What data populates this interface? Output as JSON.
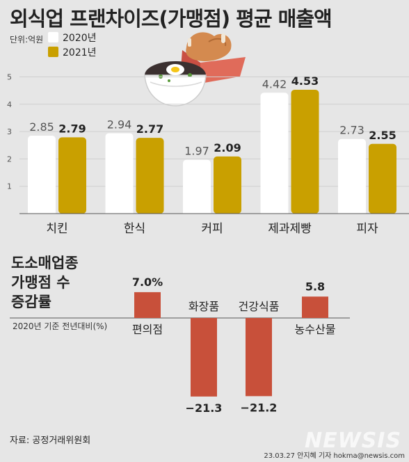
{
  "title": "외식업 프랜차이즈(가맹점) 평균 매출액",
  "unit": "단위:억원",
  "legend": [
    {
      "label": "2020년",
      "color": "#ffffff"
    },
    {
      "label": "2021년",
      "color": "#c9a000"
    }
  ],
  "chart_data": [
    {
      "type": "bar",
      "title": "외식업 프랜차이즈(가맹점) 평균 매출액",
      "unit": "단위:억원",
      "categories": [
        "치킨",
        "한식",
        "커피",
        "제과제빵",
        "피자"
      ],
      "series": [
        {
          "name": "2020년",
          "values": [
            2.85,
            2.94,
            1.97,
            4.42,
            2.73
          ],
          "color": "#ffffff"
        },
        {
          "name": "2021년",
          "values": [
            2.79,
            2.77,
            2.09,
            4.53,
            2.55
          ],
          "color": "#c9a000"
        }
      ],
      "value_labels": [
        [
          "2.85",
          "2.94",
          "1.97",
          "4.42",
          "2.73"
        ],
        [
          "2.79",
          "2.77",
          "2.09",
          "4.53",
          "2.55"
        ]
      ],
      "yticks": [
        "1",
        "2",
        "3",
        "4",
        "5"
      ],
      "ylim": [
        0,
        5
      ],
      "legend_position": "top-left"
    },
    {
      "type": "bar",
      "title_lines": [
        "도소매업종",
        "가맹점 수",
        "증감률"
      ],
      "note": "2020년 기준 전년대비(%)",
      "categories": [
        "편의점",
        "화장품",
        "건강식품",
        "농수산물"
      ],
      "values": [
        7.0,
        -21.3,
        -21.2,
        5.8
      ],
      "value_labels": [
        "7.0%",
        "−21.3",
        "−21.2",
        "5.8"
      ],
      "color": "#c8503a"
    }
  ],
  "source": "자료: 공정거래위원회",
  "credit": "23.03.27 안지혜 기자 hokma@newsis.com",
  "logo": "NEWSIS"
}
